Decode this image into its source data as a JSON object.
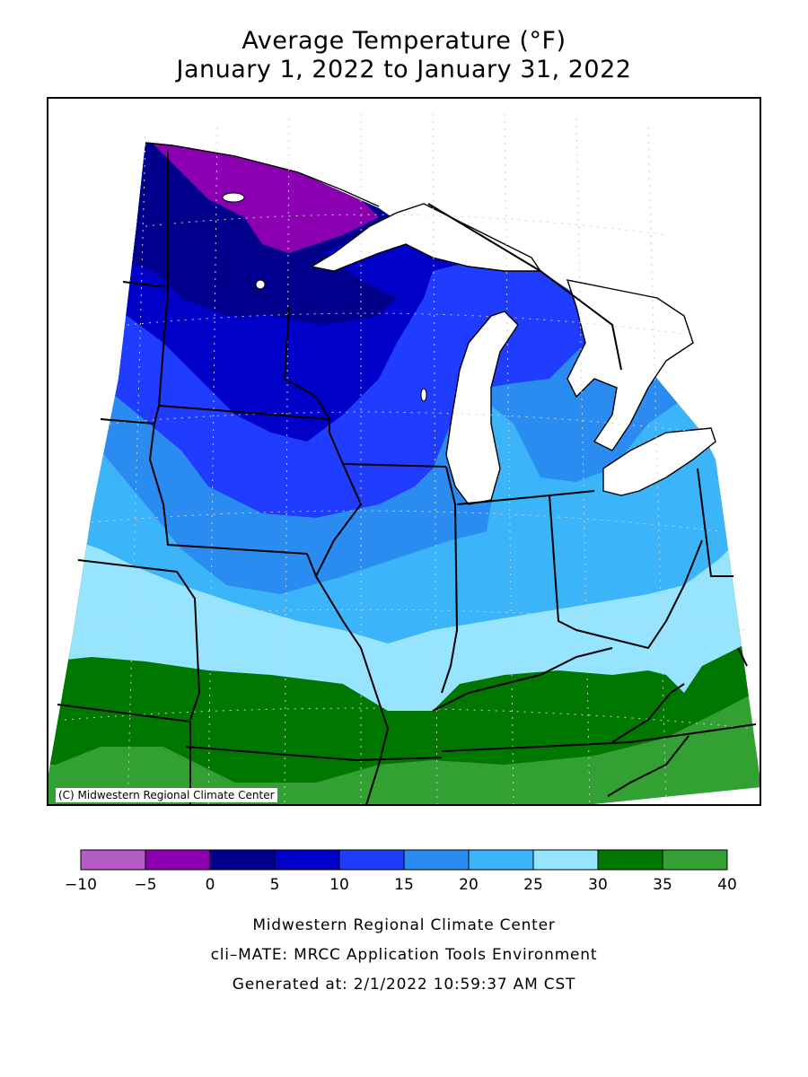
{
  "title": {
    "line1": "Average Temperature (°F)",
    "line2": "January 1, 2022 to January 31, 2022"
  },
  "map": {
    "copyright": "(C) Midwestern Regional Climate Center",
    "units": "°F"
  },
  "legend": {
    "bins": [
      {
        "min": -10,
        "max": -5,
        "color": "#b45cc6"
      },
      {
        "min": -5,
        "max": 0,
        "color": "#8a00b0"
      },
      {
        "min": 0,
        "max": 5,
        "color": "#00008c"
      },
      {
        "min": 5,
        "max": 10,
        "color": "#0000c8"
      },
      {
        "min": 10,
        "max": 15,
        "color": "#1f3cff"
      },
      {
        "min": 15,
        "max": 20,
        "color": "#2a8cf0"
      },
      {
        "min": 20,
        "max": 25,
        "color": "#3cb4fa"
      },
      {
        "min": 25,
        "max": 30,
        "color": "#96e4ff"
      },
      {
        "min": 30,
        "max": 35,
        "color": "#007800"
      },
      {
        "min": 35,
        "max": 40,
        "color": "#32a032"
      }
    ],
    "tick_labels": [
      "−10",
      "−5",
      "0",
      "5",
      "10",
      "15",
      "20",
      "25",
      "30",
      "35",
      "40"
    ]
  },
  "footer": {
    "line1": "Midwestern Regional Climate Center",
    "line2": "cli–MATE: MRCC Application Tools Environment",
    "line3": "Generated at: 2/1/2022 10:59:37 AM CST"
  }
}
